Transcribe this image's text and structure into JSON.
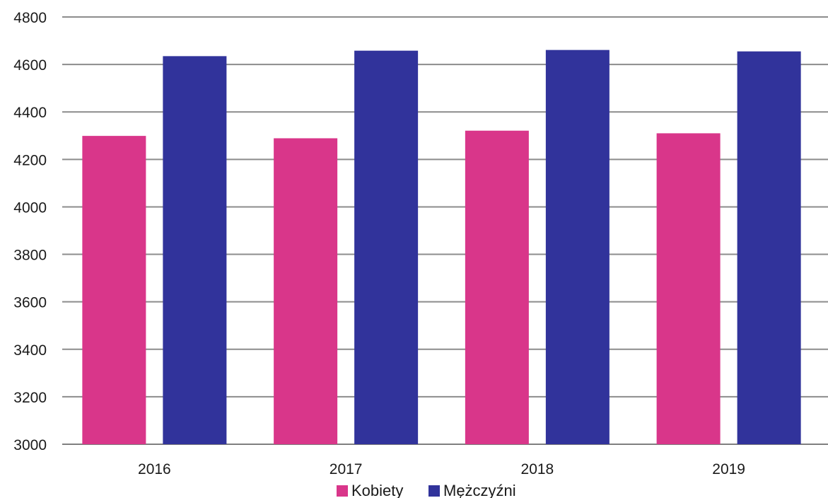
{
  "chart_data": {
    "type": "bar",
    "categories": [
      "2016",
      "2017",
      "2018",
      "2019"
    ],
    "series": [
      {
        "name": "Kobiety",
        "color": "#D9368A",
        "values": [
          4299,
          4289,
          4321,
          4310
        ]
      },
      {
        "name": "Mężczyźni",
        "color": "#31339B",
        "values": [
          4635,
          4658,
          4661,
          4655
        ]
      }
    ],
    "title": "",
    "xlabel": "",
    "ylabel": "",
    "ylim": [
      3000,
      4800
    ],
    "yticks": [
      3000,
      3200,
      3400,
      3600,
      3800,
      4000,
      4200,
      4400,
      4600,
      4800
    ],
    "grid": true,
    "legend_position": "bottom"
  }
}
